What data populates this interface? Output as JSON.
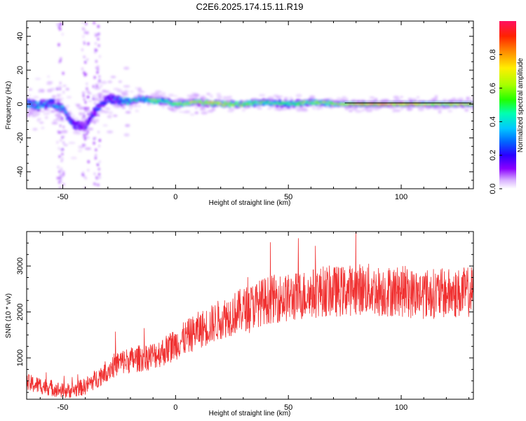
{
  "title": "C2E6.2025.174.15.11.R19",
  "chart_data": [
    {
      "type": "heatmap",
      "xlabel": "Height of straight line (km)",
      "ylabel": "Frequency (Hz)",
      "xlim": [
        -66,
        132
      ],
      "ylim": [
        -50,
        49
      ],
      "xticks": [
        -50,
        0,
        50,
        100
      ],
      "yticks": [
        -40,
        -20,
        0,
        20,
        40
      ],
      "colorbar": {
        "label": "Normalized spectral amplitude",
        "range": [
          0,
          1
        ],
        "ticks": [
          "0.0",
          "0.2",
          "0.4",
          "0.6",
          "0.8"
        ],
        "colormap": [
          "#ffffff",
          "#d9b3ff",
          "#8a00ff",
          "#2a00ff",
          "#0066ff",
          "#00c8ff",
          "#00ffb0",
          "#22ff00",
          "#a8ff00",
          "#ffee00",
          "#ff8800",
          "#ff2200",
          "#ff1060"
        ]
      },
      "ridge": [
        {
          "x": -64,
          "freq": 0,
          "amp": 0.45
        },
        {
          "x": -60,
          "freq": -1,
          "amp": 0.5
        },
        {
          "x": -55,
          "freq": 1,
          "amp": 0.4
        },
        {
          "x": -50,
          "freq": -3,
          "amp": 0.45
        },
        {
          "x": -45,
          "freq": -12,
          "amp": 0.3
        },
        {
          "x": -40,
          "freq": -13,
          "amp": 0.25
        },
        {
          "x": -35,
          "freq": -3,
          "amp": 0.35
        },
        {
          "x": -30,
          "freq": 3,
          "amp": 0.3
        },
        {
          "x": -25,
          "freq": 2,
          "amp": 0.4
        },
        {
          "x": -20,
          "freq": 2,
          "amp": 0.6
        },
        {
          "x": -15,
          "freq": 3,
          "amp": 0.45
        },
        {
          "x": -10,
          "freq": 2,
          "amp": 0.7
        },
        {
          "x": -5,
          "freq": 2,
          "amp": 0.55
        },
        {
          "x": 0,
          "freq": 0,
          "amp": 0.7
        },
        {
          "x": 10,
          "freq": 1,
          "amp": 0.75
        },
        {
          "x": 20,
          "freq": 0,
          "amp": 0.8
        },
        {
          "x": 30,
          "freq": 0,
          "amp": 0.7
        },
        {
          "x": 40,
          "freq": 1,
          "amp": 0.6
        },
        {
          "x": 50,
          "freq": 0,
          "amp": 0.6
        },
        {
          "x": 60,
          "freq": 1,
          "amp": 0.65
        },
        {
          "x": 70,
          "freq": 0,
          "amp": 0.7
        },
        {
          "x": 80,
          "freq": 0,
          "amp": 0.85
        },
        {
          "x": 90,
          "freq": 0,
          "amp": 0.9
        },
        {
          "x": 100,
          "freq": 0,
          "amp": 0.9
        },
        {
          "x": 110,
          "freq": 0,
          "amp": 0.85
        },
        {
          "x": 120,
          "freq": 0,
          "amp": 0.8
        },
        {
          "x": 131,
          "freq": 0,
          "amp": 0.8
        }
      ]
    },
    {
      "type": "line",
      "xlabel": "Height of straight line (km)",
      "ylabel": "SNR (10 * v/v)",
      "xlim": [
        -66,
        132
      ],
      "ylim": [
        100,
        3750
      ],
      "xticks": [
        -50,
        0,
        50,
        100
      ],
      "yticks": [
        1000,
        2000,
        3000
      ],
      "color": "#f03030",
      "x": [
        -66,
        -60,
        -55,
        -50,
        -45,
        -40,
        -35,
        -30,
        -25,
        -20,
        -15,
        -10,
        -5,
        0,
        5,
        10,
        15,
        20,
        25,
        30,
        35,
        40,
        45,
        50,
        55,
        60,
        65,
        70,
        75,
        80,
        85,
        90,
        95,
        100,
        105,
        110,
        115,
        120,
        125,
        132
      ],
      "y": [
        450,
        400,
        350,
        280,
        300,
        380,
        550,
        750,
        900,
        950,
        1000,
        1050,
        1150,
        1300,
        1450,
        1600,
        1700,
        1850,
        1950,
        2050,
        2150,
        2250,
        2300,
        2300,
        2350,
        2400,
        2450,
        2450,
        2450,
        2500,
        2500,
        2450,
        2450,
        2450,
        2400,
        2400,
        2400,
        2400,
        2400,
        2450
      ]
    }
  ]
}
